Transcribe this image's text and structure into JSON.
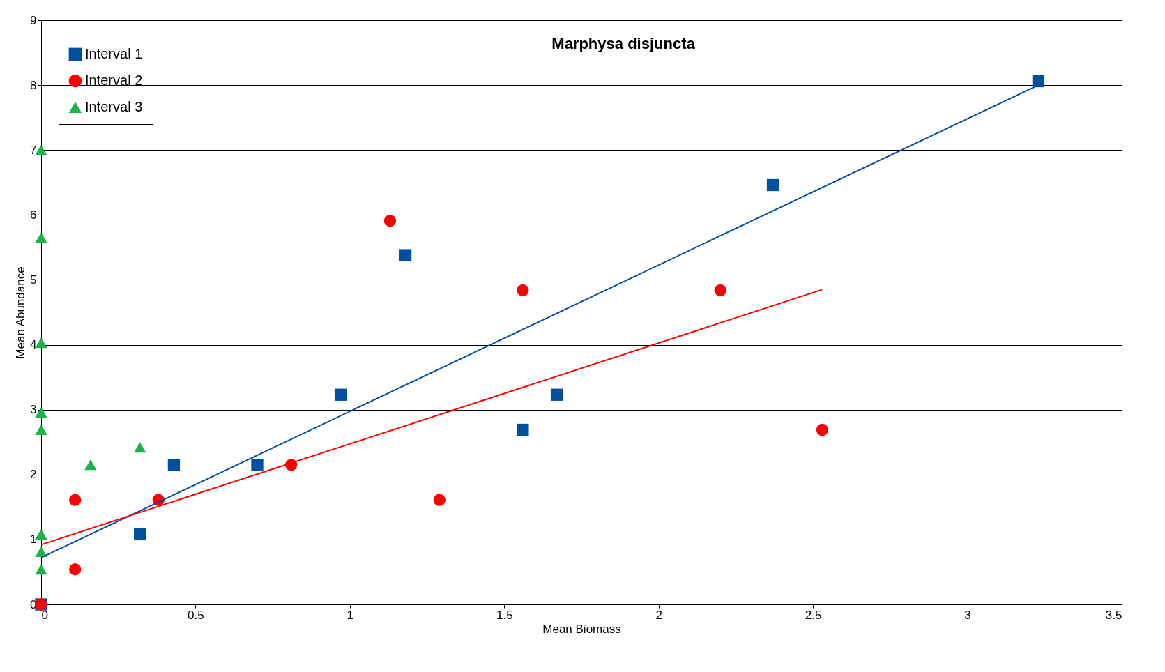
{
  "chart_data": {
    "type": "scatter",
    "title": "Marphysa disjuncta",
    "xlabel": "Mean Biomass",
    "ylabel": "Mean Abundance",
    "xlim": [
      0,
      3.5
    ],
    "xticks": [
      0,
      0.5,
      1,
      1.5,
      2,
      2.5,
      3,
      3.5
    ],
    "ylim": [
      0,
      9
    ],
    "yticks": [
      0,
      1,
      2,
      3,
      4,
      5,
      6,
      7,
      8,
      9
    ],
    "grid": "y",
    "legend": "top left",
    "series": [
      {
        "name": "Interval 1",
        "color": "#0050a0",
        "marker": "square",
        "x": [
          0,
          0.32,
          0.43,
          0.7,
          0.97,
          1.18,
          1.56,
          1.67,
          2.37,
          3.23
        ],
        "values": [
          0,
          1.08,
          2.15,
          2.15,
          3.23,
          5.38,
          2.69,
          3.23,
          6.46,
          8.06
        ]
      },
      {
        "name": "Interval 2",
        "color": "#ff0000",
        "marker": "circle",
        "x": [
          0,
          0.11,
          0.11,
          0.38,
          0.81,
          1.13,
          1.29,
          1.56,
          2.2,
          2.53
        ],
        "values": [
          0,
          0.54,
          1.61,
          1.61,
          2.15,
          5.91,
          1.61,
          4.84,
          4.84,
          2.69
        ]
      },
      {
        "name": "Interval 3",
        "color": "#1db34a",
        "marker": "triangle",
        "x": [
          0,
          0,
          0,
          0,
          0,
          0,
          0,
          0,
          0.16,
          0.32
        ],
        "values": [
          7.0,
          5.65,
          4.03,
          2.96,
          2.69,
          1.08,
          0.81,
          0.54,
          2.15,
          2.42
        ]
      },
      {
        "type": "line",
        "color": "#0050a0",
        "x": [
          0,
          3.23
        ],
        "values": [
          0.72,
          8.0
        ]
      },
      {
        "type": "line",
        "color": "#ff0000",
        "x": [
          0,
          2.53
        ],
        "values": [
          0.92,
          4.85
        ]
      }
    ]
  }
}
